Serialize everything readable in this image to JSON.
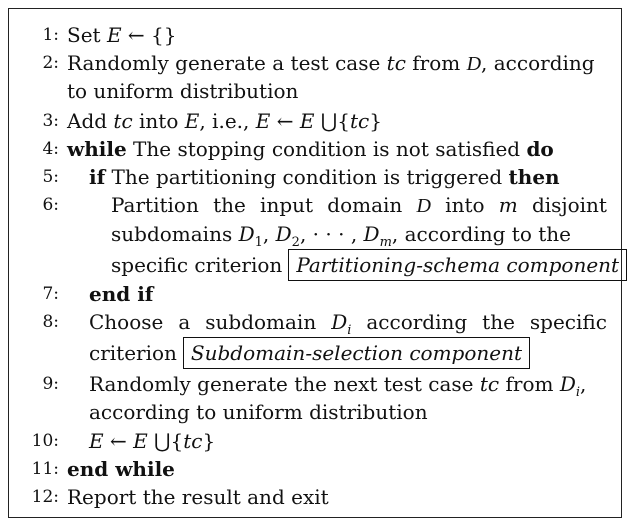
{
  "lines": [
    {
      "num": "1:",
      "text_a": "Set ",
      "m1": "E",
      "text_b": " ← {}"
    },
    {
      "num": "2:",
      "text_a": "Randomly generate a test case ",
      "m1": "tc",
      "text_b": " from ",
      "cal": "D",
      "text_c": ", according",
      "cont": "to uniform distribution"
    },
    {
      "num": "3:",
      "text_a": "Add ",
      "m1": "tc",
      "text_b": " into ",
      "m2": "E",
      "text_c": ", i.e., ",
      "m3": "E",
      "text_d": " ← ",
      "m4": "E",
      "text_e": " ⋃{",
      "m5": "tc",
      "text_f": "}"
    },
    {
      "num": "4:",
      "kw1": "while",
      "text_a": " The stopping condition is not satisfied ",
      "kw2": "do"
    },
    {
      "num": "5:",
      "kw1": "if",
      "text_a": " The partitioning condition is triggered ",
      "kw2": "then"
    },
    {
      "num": "6:",
      "w1": "Partition",
      "w2": "the",
      "w3": "input",
      "w4": "domain",
      "cal": "D",
      "w5": "into",
      "m1": "m",
      "w6": "disjoint",
      "l2a": "subdomains ",
      "l2b": "D",
      "l2c": "1",
      "l2d": ", ",
      "l2e": "D",
      "l2f": "2",
      "l2g": ", · · · , ",
      "l2h": "D",
      "l2i": "m",
      "l2j": ", according to the",
      "l3": "specific criterion"
    },
    {
      "num": "7:",
      "kw1": "end if"
    },
    {
      "num": "8:",
      "w1": "Choose",
      "w2": "a",
      "w3": "subdomain",
      "m1": "D",
      "sub": "i",
      "w4": "according",
      "w5": "the",
      "w6": "specific",
      "l2": "criterion"
    },
    {
      "num": "9:",
      "text_a": "Randomly generate the next test case ",
      "m1": "tc",
      "text_b": " from ",
      "m2": "D",
      "sub": "i",
      "text_c": ",",
      "l2": "according to uniform distribution"
    },
    {
      "num": "10:",
      "m1": "E",
      "text_a": " ← ",
      "m2": "E",
      "text_b": " ⋃{",
      "m3": "tc",
      "text_c": "}"
    },
    {
      "num": "11:",
      "kw1": "end while"
    },
    {
      "num": "12:",
      "text_a": "Report the result and exit"
    }
  ],
  "components": {
    "partitioning": "Partitioning-schema component",
    "subdomain": "Subdomain-selection component"
  }
}
